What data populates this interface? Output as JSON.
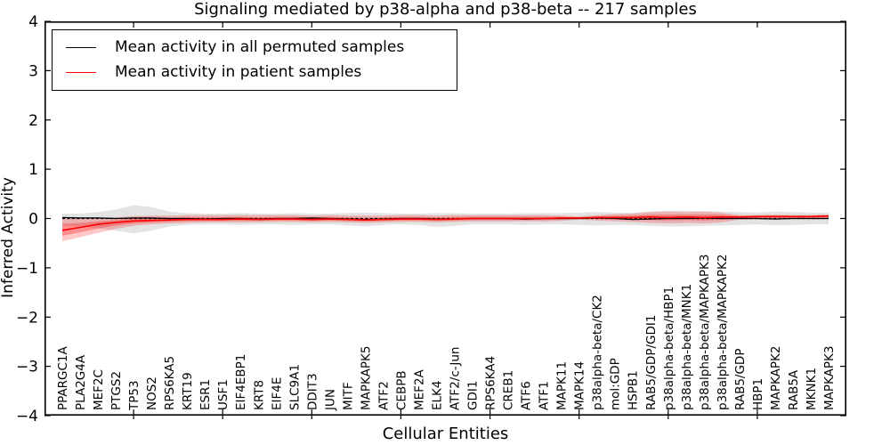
{
  "title": "Signaling mediated by p38-alpha and p38-beta -- 217 samples",
  "axes": {
    "xlabel": "Cellular Entities",
    "ylabel": "Inferred Activity",
    "y_tick_labels": [
      "4",
      "3",
      "2",
      "1",
      "0",
      "−1",
      "−2",
      "−3",
      "−4"
    ],
    "y_tick_values": [
      4,
      3,
      2,
      1,
      0,
      -1,
      -2,
      -3,
      -4
    ],
    "x_major_tick_values": [
      5,
      10,
      15,
      20,
      25,
      30,
      35,
      40
    ],
    "ylim": [
      -4,
      4
    ]
  },
  "legend": {
    "entries": [
      {
        "label": "Mean activity in all permuted samples",
        "color": "#000000"
      },
      {
        "label": "Mean activity in patient samples",
        "color": "#ff0000"
      }
    ]
  },
  "chart_data": {
    "type": "line",
    "title": "Signaling mediated by p38-alpha and p38-beta -- 217 samples",
    "xlabel": "Cellular Entities",
    "ylabel": "Inferred Activity",
    "ylim": [
      -4,
      4
    ],
    "grid": false,
    "legend_position": "upper left",
    "zero_line": {
      "style": "dashed",
      "color": "#000000",
      "y": 0
    },
    "categories": [
      "PPARGC1A",
      "PLA2G4A",
      "MEF2C",
      "PTGS2",
      "TP53",
      "NOS2",
      "RPS6KA5",
      "KRT19",
      "ESR1",
      "USF1",
      "EIF4EBP1",
      "KRT8",
      "EIF4E",
      "SLC9A1",
      "DDIT3",
      "JUN",
      "MITF",
      "MAPKAPK5",
      "ATF2",
      "CEBPB",
      "MEF2A",
      "ELK4",
      "ATF2/c-Jun",
      "GDI1",
      "RPS6KA4",
      "CREB1",
      "ATF6",
      "ATF1",
      "MAPK11",
      "MAPK14",
      "p38alpha-beta/CK2",
      "mol:GDP",
      "HSPB1",
      "RAB5/GDP/GDI1",
      "p38alpha-beta/HBP1",
      "p38alpha-beta/MNK1",
      "p38alpha-beta/MAPKAPK3",
      "p38alpha-beta/MAPKAPK2",
      "RAB5/GDP",
      "HBP1",
      "MAPKAPK2",
      "RAB5A",
      "MKNK1",
      "MAPKAPK3"
    ],
    "series": [
      {
        "name": "Mean activity in all permuted samples",
        "color": "#000000",
        "line": "solid",
        "band_color": "#8a8a8a",
        "band_opacity": 0.24,
        "inner_band": false,
        "values": [
          0.02,
          0.01,
          0.01,
          0.0,
          0.01,
          0.01,
          0.0,
          0.0,
          -0.01,
          0.0,
          0.0,
          -0.01,
          0.0,
          0.0,
          0.01,
          0.0,
          -0.01,
          -0.02,
          -0.01,
          0.0,
          0.0,
          -0.01,
          -0.01,
          0.0,
          0.0,
          0.0,
          -0.01,
          0.0,
          0.0,
          0.0,
          0.01,
          0.0,
          -0.02,
          -0.01,
          0.0,
          0.0,
          0.01,
          0.0,
          0.0,
          0.0,
          -0.01,
          0.0,
          0.0,
          0.0
        ],
        "band_upper": [
          0.1,
          0.1,
          0.13,
          0.18,
          0.27,
          0.23,
          0.14,
          0.11,
          0.1,
          0.1,
          0.11,
          0.1,
          0.1,
          0.11,
          0.1,
          0.1,
          0.11,
          0.12,
          0.11,
          0.1,
          0.1,
          0.11,
          0.11,
          0.1,
          0.1,
          0.1,
          0.11,
          0.11,
          0.11,
          0.12,
          0.13,
          0.12,
          0.12,
          0.14,
          0.16,
          0.16,
          0.15,
          0.14,
          0.13,
          0.12,
          0.14,
          0.13,
          0.12,
          0.12
        ],
        "band_lower": [
          -0.14,
          -0.16,
          -0.2,
          -0.25,
          -0.3,
          -0.25,
          -0.16,
          -0.13,
          -0.12,
          -0.12,
          -0.13,
          -0.12,
          -0.12,
          -0.13,
          -0.12,
          -0.12,
          -0.14,
          -0.16,
          -0.13,
          -0.12,
          -0.13,
          -0.17,
          -0.15,
          -0.12,
          -0.12,
          -0.12,
          -0.13,
          -0.12,
          -0.12,
          -0.13,
          -0.14,
          -0.13,
          -0.13,
          -0.15,
          -0.16,
          -0.16,
          -0.15,
          -0.14,
          -0.13,
          -0.12,
          -0.14,
          -0.13,
          -0.12,
          -0.12
        ]
      },
      {
        "name": "Mean activity in patient samples",
        "color": "#ff0000",
        "line": "solid",
        "band_color": "#ff0000",
        "band_opacity": 0.22,
        "inner_band": true,
        "values": [
          -0.24,
          -0.18,
          -0.12,
          -0.08,
          -0.05,
          -0.04,
          -0.03,
          -0.02,
          -0.02,
          -0.02,
          -0.01,
          -0.02,
          -0.01,
          -0.01,
          -0.02,
          -0.01,
          -0.02,
          -0.03,
          -0.02,
          -0.01,
          -0.01,
          -0.02,
          -0.01,
          0.0,
          0.0,
          0.0,
          0.0,
          0.0,
          0.01,
          0.01,
          0.02,
          0.02,
          0.02,
          0.03,
          0.02,
          0.03,
          0.02,
          0.03,
          0.03,
          0.04,
          0.04,
          0.04,
          0.04,
          0.05
        ],
        "band_upper": [
          0.02,
          0.0,
          0.0,
          0.02,
          0.05,
          0.06,
          0.06,
          0.07,
          0.07,
          0.07,
          0.07,
          0.07,
          0.07,
          0.07,
          0.06,
          0.07,
          0.06,
          0.06,
          0.06,
          0.07,
          0.07,
          0.06,
          0.07,
          0.07,
          0.07,
          0.07,
          0.07,
          0.07,
          0.06,
          0.04,
          0.07,
          0.09,
          0.1,
          0.13,
          0.14,
          0.13,
          0.14,
          0.12,
          0.07,
          0.07,
          0.08,
          0.07,
          0.07,
          0.08
        ],
        "band_lower": [
          -0.46,
          -0.38,
          -0.29,
          -0.21,
          -0.15,
          -0.12,
          -0.1,
          -0.09,
          -0.08,
          -0.08,
          -0.08,
          -0.08,
          -0.07,
          -0.07,
          -0.08,
          -0.07,
          -0.08,
          -0.09,
          -0.08,
          -0.07,
          -0.07,
          -0.08,
          -0.07,
          -0.06,
          -0.06,
          -0.06,
          -0.06,
          -0.06,
          -0.05,
          -0.02,
          -0.04,
          -0.06,
          -0.07,
          -0.09,
          -0.1,
          -0.09,
          -0.1,
          -0.08,
          -0.02,
          -0.01,
          -0.02,
          -0.01,
          -0.01,
          -0.01
        ]
      }
    ]
  }
}
